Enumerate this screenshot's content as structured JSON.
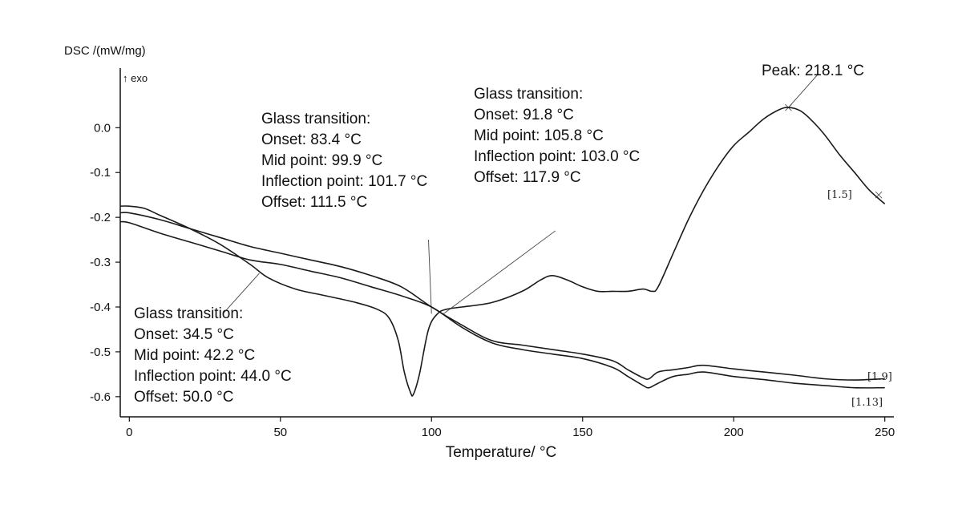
{
  "chart_data": {
    "type": "line",
    "ylabel": "DSC /(mW/mg)",
    "exo_label": "↑ exo",
    "xlabel": "Temperature/ °C",
    "xlim": [
      -3,
      253
    ],
    "ylim": [
      -0.645,
      0.115
    ],
    "xticks": [
      0,
      50,
      100,
      150,
      200,
      250
    ],
    "yticks": [
      0.0,
      -0.1,
      -0.2,
      -0.3,
      -0.4,
      -0.5,
      -0.6
    ],
    "ytick_labels": [
      "0.0",
      "-0.1",
      "-0.2",
      "-0.3",
      "-0.4",
      "-0.5",
      "-0.6"
    ],
    "grid": false,
    "series": [
      {
        "name": "[1.5]",
        "x": [
          -3,
          0,
          5,
          10,
          20,
          30,
          40,
          46,
          55,
          65,
          75,
          82,
          86,
          89,
          91,
          93,
          94,
          96,
          99,
          102,
          105,
          110,
          120,
          130,
          136,
          140,
          145,
          150,
          155,
          160,
          165,
          170,
          173,
          175,
          180,
          185,
          190,
          195,
          200,
          205,
          210,
          215,
          218,
          222,
          226,
          230,
          235,
          240,
          245,
          250
        ],
        "y": [
          -0.175,
          -0.175,
          -0.18,
          -0.195,
          -0.225,
          -0.26,
          -0.305,
          -0.335,
          -0.36,
          -0.375,
          -0.39,
          -0.405,
          -0.425,
          -0.475,
          -0.545,
          -0.59,
          -0.595,
          -0.55,
          -0.45,
          -0.415,
          -0.405,
          -0.4,
          -0.39,
          -0.365,
          -0.34,
          -0.33,
          -0.34,
          -0.355,
          -0.365,
          -0.365,
          -0.365,
          -0.36,
          -0.365,
          -0.355,
          -0.28,
          -0.205,
          -0.14,
          -0.085,
          -0.04,
          -0.01,
          0.02,
          0.04,
          0.045,
          0.038,
          0.015,
          -0.015,
          -0.06,
          -0.1,
          -0.14,
          -0.17
        ]
      },
      {
        "name": "[1.9]",
        "x": [
          -3,
          0,
          10,
          20,
          30,
          40,
          50,
          60,
          70,
          80,
          90,
          100,
          110,
          120,
          130,
          140,
          150,
          160,
          165,
          170,
          172,
          175,
          180,
          185,
          190,
          200,
          210,
          220,
          230,
          240,
          250
        ],
        "y": [
          -0.19,
          -0.19,
          -0.205,
          -0.225,
          -0.245,
          -0.265,
          -0.28,
          -0.295,
          -0.31,
          -0.33,
          -0.355,
          -0.4,
          -0.44,
          -0.475,
          -0.485,
          -0.495,
          -0.505,
          -0.52,
          -0.54,
          -0.558,
          -0.56,
          -0.545,
          -0.54,
          -0.535,
          -0.53,
          -0.538,
          -0.545,
          -0.552,
          -0.56,
          -0.563,
          -0.56
        ]
      },
      {
        "name": "[1.13]",
        "x": [
          -3,
          0,
          10,
          20,
          30,
          40,
          50,
          60,
          70,
          80,
          90,
          100,
          110,
          120,
          130,
          140,
          150,
          160,
          165,
          170,
          172,
          175,
          180,
          185,
          190,
          200,
          210,
          220,
          230,
          240,
          250
        ],
        "y": [
          -0.21,
          -0.212,
          -0.235,
          -0.255,
          -0.275,
          -0.295,
          -0.305,
          -0.32,
          -0.335,
          -0.355,
          -0.375,
          -0.4,
          -0.445,
          -0.48,
          -0.495,
          -0.505,
          -0.515,
          -0.535,
          -0.555,
          -0.575,
          -0.58,
          -0.57,
          -0.555,
          -0.55,
          -0.545,
          -0.555,
          -0.562,
          -0.57,
          -0.575,
          -0.58,
          -0.58
        ]
      }
    ],
    "annotations": [
      {
        "lines": [
          "Glass transition:",
          "Onset: 34.5 °C",
          "Mid point: 42.2 °C",
          "Inflection point: 44.0 °C",
          "Offset: 50.0 °C"
        ]
      },
      {
        "lines": [
          "Glass transition:",
          "Onset: 83.4 °C",
          "Mid point: 99.9 °C",
          "Inflection point: 101.7 °C",
          "Offset: 111.5 °C"
        ]
      },
      {
        "lines": [
          "Glass transition:",
          "Onset: 91.8 °C",
          "Mid point: 105.8 °C",
          "Inflection point: 103.0 °C",
          "Offset: 117.9 °C"
        ]
      },
      {
        "lines": [
          "Peak: 218.1 °C"
        ]
      }
    ]
  }
}
